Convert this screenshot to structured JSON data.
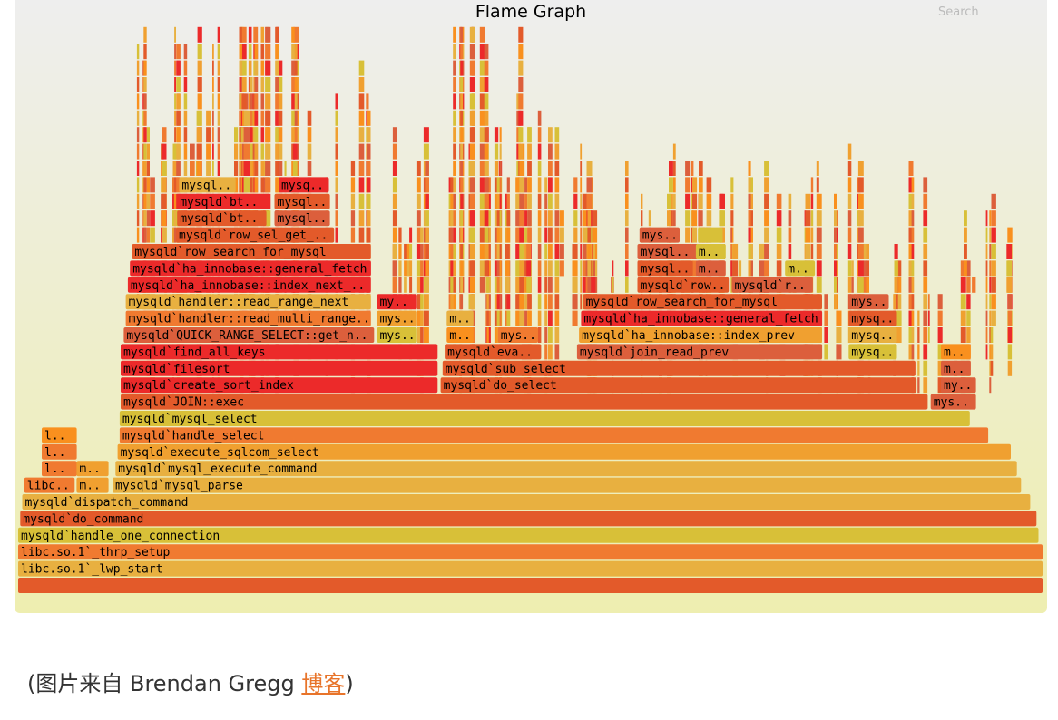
{
  "chart_data": {
    "type": "flame-graph",
    "title": "Flame Graph",
    "search_label": "Search",
    "colors": [
      "#e35a2a",
      "#f0a030",
      "#d8c038",
      "#ec2a2a",
      "#f07a30",
      "#dc5f3c",
      "#e8b040",
      "#f9901e"
    ],
    "frames": [
      {
        "name": "",
        "start": 0.0,
        "width": 1.0,
        "depth": 0
      },
      {
        "name": "libc.so.1`_lwp_start",
        "start": 0.0,
        "width": 1.0,
        "depth": 1
      },
      {
        "name": "libc.so.1`_thrp_setup",
        "start": 0.0,
        "width": 1.0,
        "depth": 2
      },
      {
        "name": "mysqld`handle_one_connection",
        "start": 0.0,
        "width": 0.996,
        "depth": 3
      },
      {
        "name": "mysqld`do_command",
        "start": 0.002,
        "width": 0.992,
        "depth": 4
      },
      {
        "name": "mysqld`dispatch_command",
        "start": 0.004,
        "width": 0.984,
        "depth": 5
      },
      {
        "name": "libc..",
        "start": 0.006,
        "width": 0.05,
        "depth": 6
      },
      {
        "name": "my..",
        "start": 0.057,
        "width": 0.032,
        "depth": 6
      },
      {
        "name": "mysqld`mysql_parse",
        "start": 0.092,
        "width": 0.887,
        "depth": 6
      },
      {
        "name": "l..",
        "start": 0.023,
        "width": 0.035,
        "depth": 7
      },
      {
        "name": "my..",
        "start": 0.057,
        "width": 0.032,
        "depth": 7
      },
      {
        "name": "mysqld`mysql_execute_command",
        "start": 0.095,
        "width": 0.88,
        "depth": 7
      },
      {
        "name": "l..",
        "start": 0.023,
        "width": 0.035,
        "depth": 8
      },
      {
        "name": "mysqld`execute_sqlcom_select",
        "start": 0.097,
        "width": 0.872,
        "depth": 8
      },
      {
        "name": "l..",
        "start": 0.023,
        "width": 0.035,
        "depth": 9
      },
      {
        "name": "mysqld`handle_select",
        "start": 0.099,
        "width": 0.848,
        "depth": 9
      },
      {
        "name": "mysqld`mysql_select",
        "start": 0.099,
        "width": 0.83,
        "depth": 10
      },
      {
        "name": "mysqld`JOIN::exec",
        "start": 0.1,
        "width": 0.788,
        "depth": 11
      },
      {
        "name": "mysq..",
        "start": 0.89,
        "width": 0.045,
        "depth": 11
      },
      {
        "name": "mysqld`create_sort_index",
        "start": 0.1,
        "width": 0.31,
        "depth": 12
      },
      {
        "name": "mysqld`do_select",
        "start": 0.412,
        "width": 0.465,
        "depth": 12
      },
      {
        "name": "my..",
        "start": 0.9,
        "width": 0.035,
        "depth": 12
      },
      {
        "name": "mysqld`filesort",
        "start": 0.1,
        "width": 0.31,
        "depth": 13
      },
      {
        "name": "mysqld`sub_select",
        "start": 0.414,
        "width": 0.462,
        "depth": 13
      },
      {
        "name": "m..",
        "start": 0.9,
        "width": 0.03,
        "depth": 13
      },
      {
        "name": "mysqld`find_all_keys",
        "start": 0.1,
        "width": 0.31,
        "depth": 14
      },
      {
        "name": "mysqld`eval..",
        "start": 0.416,
        "width": 0.095,
        "depth": 14
      },
      {
        "name": "mysqld`join_read_prev",
        "start": 0.545,
        "width": 0.24,
        "depth": 14
      },
      {
        "name": "mysq..",
        "start": 0.81,
        "width": 0.048,
        "depth": 14
      },
      {
        "name": "m..",
        "start": 0.9,
        "width": 0.03,
        "depth": 14
      },
      {
        "name": "mysqld`QUICK_RANGE_SELECT::get_n..",
        "start": 0.103,
        "width": 0.245,
        "depth": 15
      },
      {
        "name": "mys..",
        "start": 0.35,
        "width": 0.04,
        "depth": 15
      },
      {
        "name": "m..",
        "start": 0.418,
        "width": 0.027,
        "depth": 15
      },
      {
        "name": "mysq..",
        "start": 0.468,
        "width": 0.04,
        "depth": 15
      },
      {
        "name": "mysqld`ha_innobase::index_prev",
        "start": 0.547,
        "width": 0.238,
        "depth": 15
      },
      {
        "name": "mysq..",
        "start": 0.81,
        "width": 0.048,
        "depth": 15
      },
      {
        "name": "mysqld`handler::read_multi_range..",
        "start": 0.105,
        "width": 0.24,
        "depth": 16
      },
      {
        "name": "mys..",
        "start": 0.35,
        "width": 0.04,
        "depth": 16
      },
      {
        "name": "m..",
        "start": 0.418,
        "width": 0.027,
        "depth": 16
      },
      {
        "name": "mysqld`ha_innobase::general_fetch",
        "start": 0.549,
        "width": 0.236,
        "depth": 16
      },
      {
        "name": "mysq..",
        "start": 0.81,
        "width": 0.048,
        "depth": 16
      },
      {
        "name": "mysqld`handler::read_range_next",
        "start": 0.105,
        "width": 0.24,
        "depth": 17
      },
      {
        "name": "my..",
        "start": 0.35,
        "width": 0.04,
        "depth": 17
      },
      {
        "name": "mysqld`row_search_for_mysql",
        "start": 0.551,
        "width": 0.234,
        "depth": 17
      },
      {
        "name": "mys..",
        "start": 0.81,
        "width": 0.04,
        "depth": 17
      },
      {
        "name": "mysqld`ha_innobase::index_next_..",
        "start": 0.107,
        "width": 0.238,
        "depth": 18
      },
      {
        "name": "mysqld`row_..",
        "start": 0.604,
        "width": 0.09,
        "depth": 18
      },
      {
        "name": "mysqld`ro..",
        "start": 0.696,
        "width": 0.08,
        "depth": 18
      },
      {
        "name": "mysqld`ha_innobase::general_fetch",
        "start": 0.109,
        "width": 0.236,
        "depth": 19
      },
      {
        "name": "mysql..",
        "start": 0.604,
        "width": 0.055,
        "depth": 19
      },
      {
        "name": "my..",
        "start": 0.661,
        "width": 0.03,
        "depth": 19
      },
      {
        "name": "m..",
        "start": 0.748,
        "width": 0.03,
        "depth": 19
      },
      {
        "name": "mysqld`row_search_for_mysql",
        "start": 0.111,
        "width": 0.234,
        "depth": 20
      },
      {
        "name": "mysql..",
        "start": 0.604,
        "width": 0.055,
        "depth": 20
      },
      {
        "name": "my..",
        "start": 0.661,
        "width": 0.03,
        "depth": 20
      },
      {
        "name": "mysqld`row_sel_get_..",
        "start": 0.154,
        "width": 0.155,
        "depth": 21
      },
      {
        "name": "mys..",
        "start": 0.606,
        "width": 0.04,
        "depth": 21
      },
      {
        "name": "m..",
        "start": 0.663,
        "width": 0.025,
        "depth": 21
      },
      {
        "name": "mysqld`btr..",
        "start": 0.155,
        "width": 0.088,
        "depth": 22
      },
      {
        "name": "mysql..",
        "start": 0.25,
        "width": 0.055,
        "depth": 22
      },
      {
        "name": "mysqld`btr..",
        "start": 0.155,
        "width": 0.088,
        "depth": 23
      },
      {
        "name": "mysql..",
        "start": 0.25,
        "width": 0.055,
        "depth": 23
      },
      {
        "name": "mysql..",
        "start": 0.157,
        "width": 0.056,
        "depth": 24
      },
      {
        "name": "mysq..",
        "start": 0.254,
        "width": 0.05,
        "depth": 24
      }
    ]
  },
  "caption": {
    "prefix": "(图片来自 Brendan Gregg ",
    "link_text": "博客",
    "suffix": ")"
  }
}
